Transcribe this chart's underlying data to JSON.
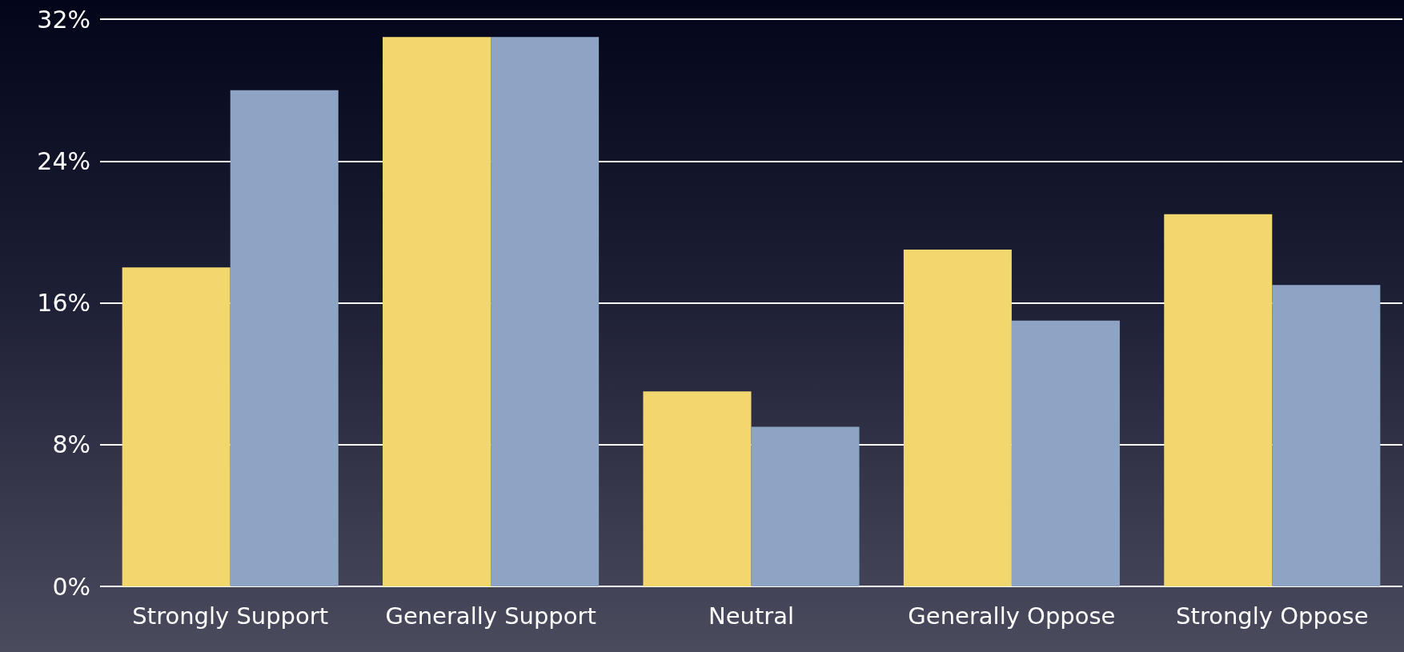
{
  "chart_data": {
    "type": "bar",
    "categories": [
      "Strongly Support",
      "Generally Support",
      "Neutral",
      "Generally Oppose",
      "Strongly Oppose"
    ],
    "series": [
      {
        "color": "#f2d66e",
        "values": [
          18,
          31,
          11,
          19,
          21
        ]
      },
      {
        "color": "#8ea4c4",
        "values": [
          28,
          31,
          9,
          15,
          17
        ]
      }
    ],
    "ylim": [
      0,
      32
    ],
    "yticks": [
      {
        "value": 0,
        "label": "0%"
      },
      {
        "value": 8,
        "label": "8%"
      },
      {
        "value": 16,
        "label": "16%"
      },
      {
        "value": 24,
        "label": "24%"
      },
      {
        "value": 32,
        "label": "32%"
      }
    ],
    "grid": "y"
  }
}
